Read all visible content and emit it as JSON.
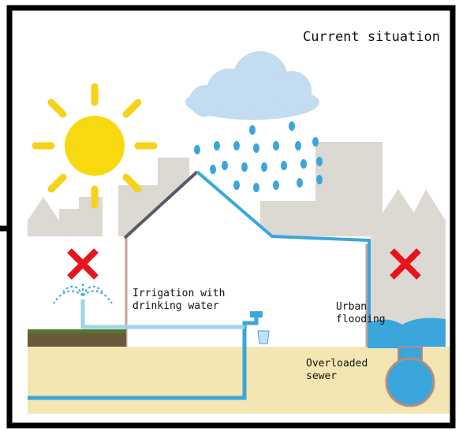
{
  "title": "Current situation",
  "labels": [
    {
      "lines": [
        "Irrigation with",
        "drinking water"
      ]
    },
    {
      "lines": [
        "Urban",
        "flooding"
      ]
    },
    {
      "lines": [
        "Overloaded",
        "sewer"
      ]
    }
  ]
}
